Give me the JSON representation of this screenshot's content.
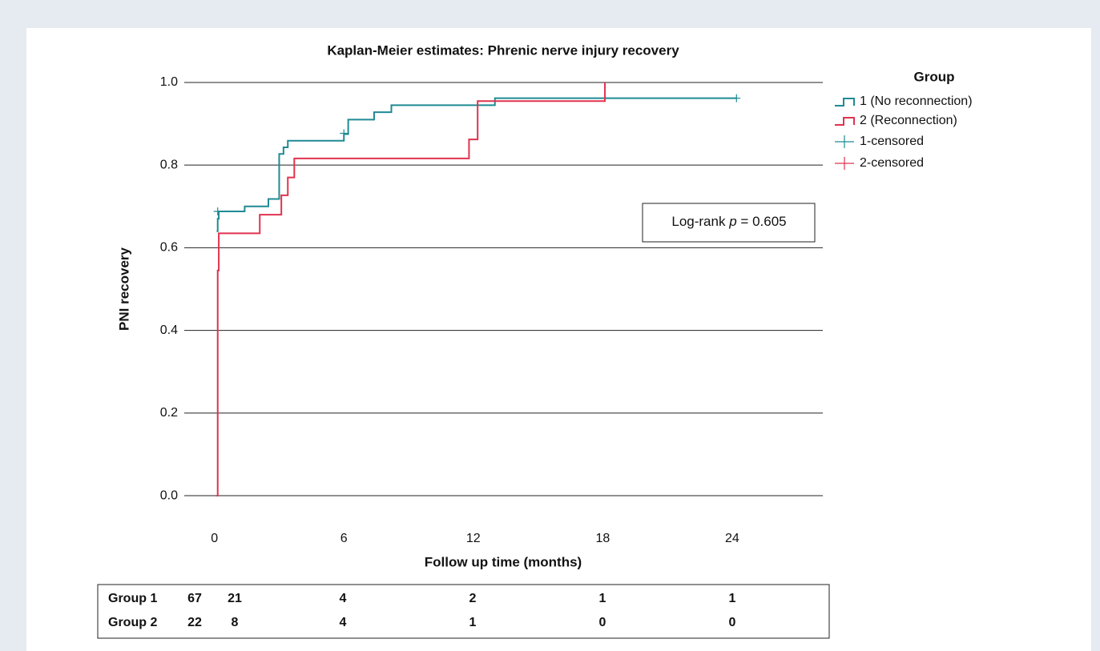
{
  "chart_data": {
    "type": "line",
    "drawstyle": "steps-post",
    "title": "Kaplan-Meier estimates: Phrenic nerve injury recovery",
    "x_label": "Follow up time (months)",
    "y_label": "PNI recovery",
    "xlim": [
      -1.4,
      28.2
    ],
    "xticks": [
      0,
      6,
      12,
      18,
      24
    ],
    "ylim": [
      -0.06,
      1.06
    ],
    "yticks": [
      {
        "value": 0,
        "label": "0.0"
      },
      0.2,
      0.4,
      0.6,
      0.8,
      {
        "value": 1,
        "label": "1.0"
      }
    ],
    "grid": true,
    "legend_title": "Group",
    "legend_position": "right",
    "series": [
      {
        "name": "1 (No reconnection)",
        "color": "#1f8a94",
        "x": [
          0.1,
          0.15,
          0.2,
          1.4,
          2.5,
          3.0,
          3.2,
          3.4,
          6.0,
          6.2,
          7.4,
          8.2,
          13.0,
          24.2
        ],
        "values": [
          0.64,
          0.67,
          0.688,
          0.7,
          0.718,
          0.827,
          0.843,
          0.859,
          0.875,
          0.91,
          0.928,
          0.945,
          0.962,
          0.962
        ],
        "censored_name": "1-censored",
        "censored_x": [
          0.15,
          6.0,
          24.2
        ],
        "censored_values": [
          0.688,
          0.877,
          0.962
        ]
      },
      {
        "name": "2 (Reconnection)",
        "color": "#e0334f",
        "x": [
          0.1,
          0.15,
          0.2,
          2.1,
          3.1,
          3.4,
          3.7,
          11.8,
          12.2,
          18.1
        ],
        "values": [
          0,
          0.545,
          0.635,
          0.68,
          0.727,
          0.77,
          0.816,
          0.862,
          0.955,
          1.0
        ],
        "censored_name": "2-censored"
      }
    ],
    "annotation": {
      "prefix": "Log-rank",
      "italic": "p",
      "suffix": "= 0.605"
    },
    "risk_table": [
      {
        "label": "Group 1",
        "counts": [
          67,
          21,
          4,
          2,
          1,
          1
        ]
      },
      {
        "label": "Group 2",
        "counts": [
          22,
          8,
          4,
          1,
          0,
          0
        ]
      }
    ]
  }
}
